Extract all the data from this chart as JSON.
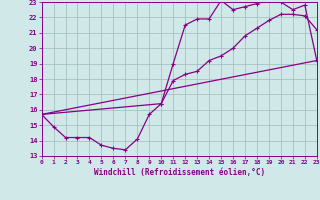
{
  "xlabel": "Windchill (Refroidissement éolien,°C)",
  "bg_color": "#d0e8e8",
  "line_color": "#880088",
  "xmin": 0,
  "xmax": 23,
  "ymin": 13,
  "ymax": 23,
  "line1_x": [
    0,
    1,
    2,
    3,
    4,
    5,
    6,
    7,
    8,
    9,
    10,
    11,
    12,
    13,
    14,
    15,
    16,
    17,
    18,
    19,
    20,
    21,
    22,
    23
  ],
  "line1_y": [
    15.7,
    14.9,
    14.2,
    14.2,
    14.2,
    13.7,
    13.5,
    13.4,
    14.1,
    15.7,
    16.4,
    17.9,
    18.3,
    18.5,
    19.2,
    19.5,
    20.0,
    20.8,
    21.3,
    21.8,
    22.2,
    22.2,
    22.1,
    21.2
  ],
  "line2_x": [
    0,
    10,
    11,
    12,
    13,
    14,
    15,
    16,
    17,
    18,
    19,
    20,
    21,
    22,
    23
  ],
  "line2_y": [
    15.7,
    16.4,
    19.0,
    21.5,
    21.9,
    21.9,
    23.1,
    22.5,
    22.7,
    22.9,
    23.1,
    23.0,
    22.5,
    22.8,
    19.2
  ],
  "line3_x": [
    0,
    23
  ],
  "line3_y": [
    15.7,
    19.2
  ],
  "xticks": [
    0,
    1,
    2,
    3,
    4,
    5,
    6,
    7,
    8,
    9,
    10,
    11,
    12,
    13,
    14,
    15,
    16,
    17,
    18,
    19,
    20,
    21,
    22,
    23
  ],
  "yticks": [
    13,
    14,
    15,
    16,
    17,
    18,
    19,
    20,
    21,
    22,
    23
  ]
}
